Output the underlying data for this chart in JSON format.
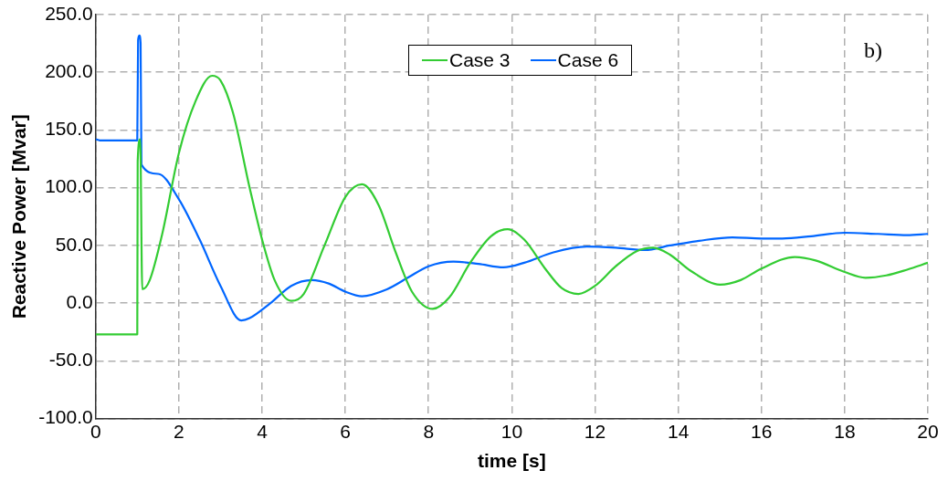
{
  "chart_data": {
    "type": "line",
    "xlabel": "time [s]",
    "ylabel": "Reactive Power [Mvar]",
    "annotations": [
      "b)"
    ],
    "xlim": [
      0,
      20
    ],
    "xticks": [
      0,
      2,
      4,
      6,
      8,
      10,
      12,
      14,
      16,
      18,
      20
    ],
    "ylim": [
      -100,
      250
    ],
    "yticks": [
      {
        "value": -100,
        "label": "-100.0"
      },
      {
        "value": -50,
        "label": "-50.0"
      },
      {
        "value": 0,
        "label": "0.0"
      },
      {
        "value": 50,
        "label": "50.0"
      },
      {
        "value": 100,
        "label": "100.0"
      },
      {
        "value": 150,
        "label": "150.0"
      },
      {
        "value": 200,
        "label": "200.0"
      },
      {
        "value": 250,
        "label": "250.0"
      }
    ],
    "grid": true,
    "legend": "top",
    "marker": "none",
    "line_style": "solid",
    "series": [
      {
        "name": "Case 3",
        "color": "#33cc33",
        "x": [
          0,
          1.0,
          1.01,
          1.07,
          1.12,
          1.3,
          1.6,
          2,
          2.4,
          2.8,
          3.0,
          3.3,
          3.7,
          4,
          4.3,
          4.7,
          5.0,
          5.5,
          6.0,
          6.4,
          6.8,
          7.2,
          7.6,
          8.1,
          8.5,
          9.0,
          9.5,
          9.9,
          10.3,
          10.8,
          11.2,
          11.6,
          12.0,
          12.5,
          13.0,
          13.4,
          13.8,
          14.3,
          15.0,
          15.5,
          16,
          16.8,
          17.3,
          18,
          18.5,
          19,
          19.5,
          20
        ],
        "values": [
          -27,
          -27,
          123,
          142,
          12,
          20,
          60,
          130,
          175,
          197,
          193,
          165,
          100,
          55,
          20,
          2,
          8,
          50,
          92,
          103,
          85,
          45,
          10,
          -5,
          5,
          35,
          58,
          64,
          55,
          30,
          13,
          8,
          15,
          32,
          45,
          48,
          42,
          28,
          16,
          20,
          30,
          40,
          37,
          27,
          22,
          24,
          29,
          35
        ]
      },
      {
        "name": "Case 6",
        "color": "#0066ff",
        "x": [
          0,
          0.1,
          1.0,
          1.02,
          1.05,
          1.08,
          1.1,
          1.5,
          2,
          2.5,
          3,
          3.5,
          3.7,
          4.2,
          4.7,
          5.2,
          5.6,
          6.0,
          6.4,
          7.0,
          7.5,
          8.0,
          8.6,
          9.2,
          9.8,
          10.3,
          11,
          11.8,
          12.5,
          13.2,
          13.8,
          14.5,
          15.3,
          16,
          16.5,
          17.2,
          18,
          18.8,
          19.5,
          20
        ],
        "values": [
          142,
          141,
          141,
          228,
          232,
          225,
          120,
          112,
          90,
          55,
          15,
          -15,
          -13,
          0,
          15,
          20,
          17,
          10,
          6,
          12,
          22,
          32,
          36,
          34,
          31,
          35,
          44,
          49,
          48,
          46,
          50,
          54,
          57,
          56,
          56,
          58,
          61,
          60,
          59,
          60
        ]
      }
    ]
  }
}
